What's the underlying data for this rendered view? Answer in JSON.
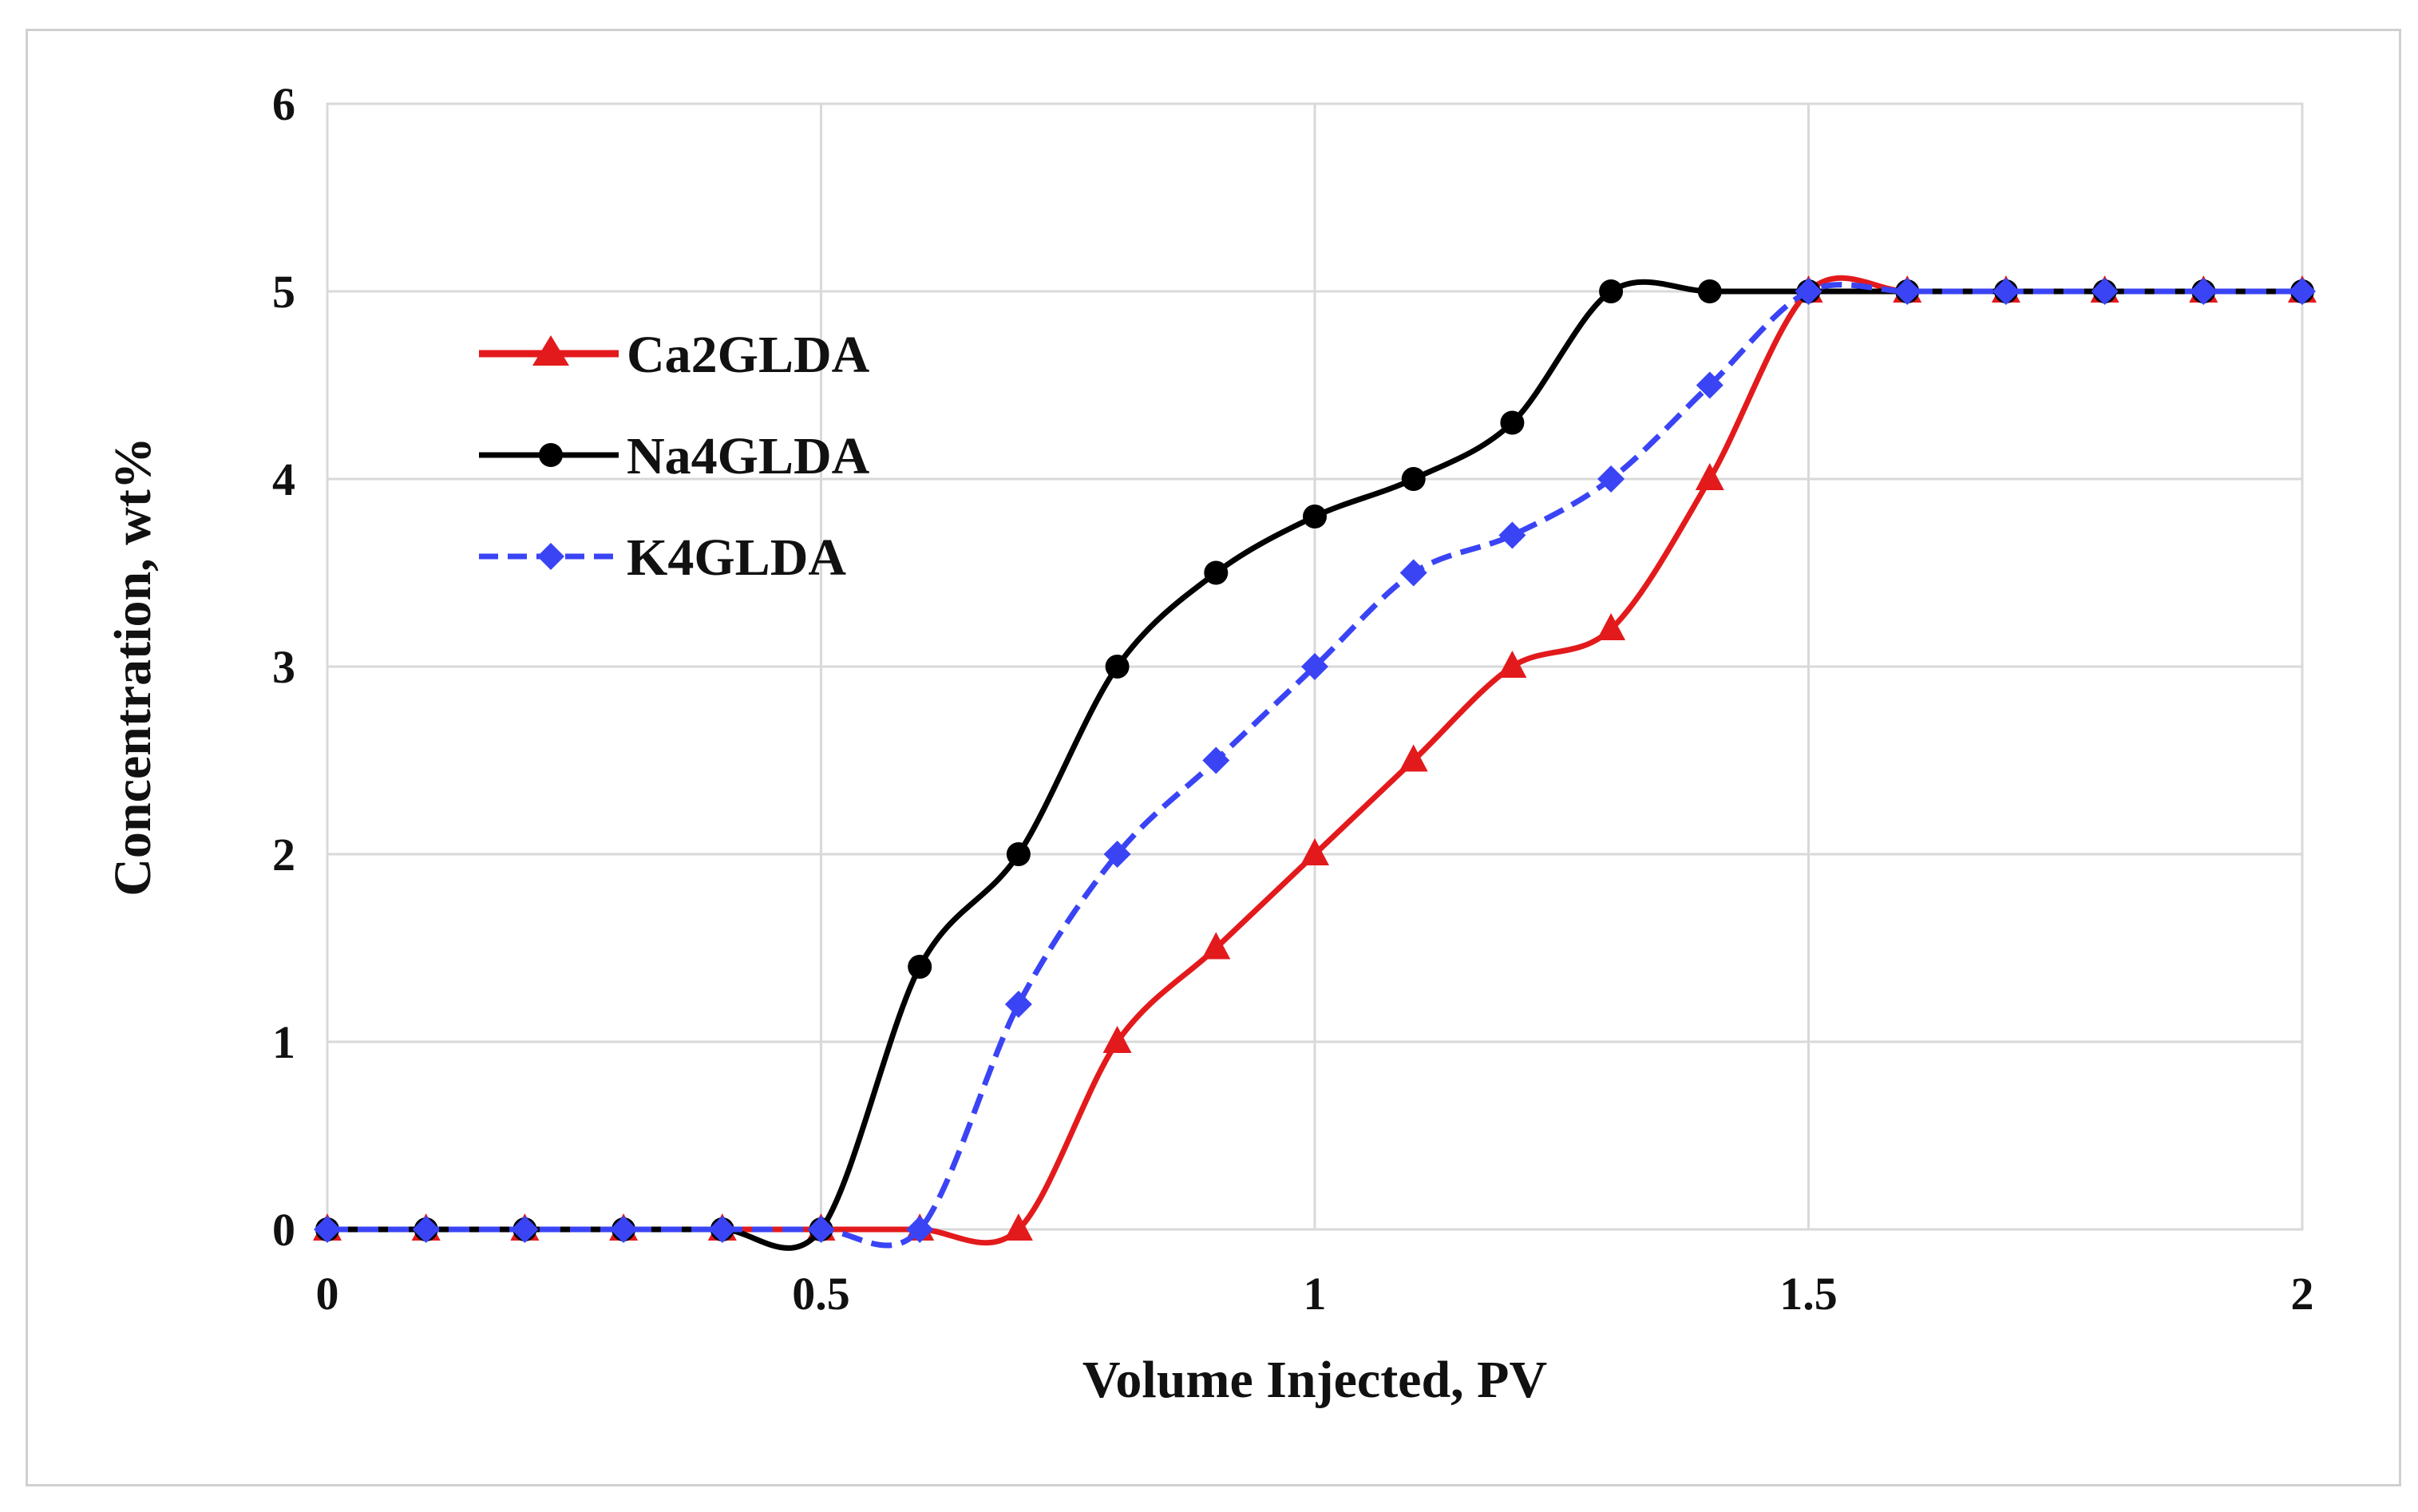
{
  "chart_data": {
    "type": "line",
    "title": "",
    "xlabel": "Volume Injected, PV",
    "ylabel": "Concentration, wt%",
    "xlim": [
      0,
      2
    ],
    "ylim": [
      0,
      6
    ],
    "x_ticks": [
      "0",
      "0.5",
      "1",
      "1.5",
      "2"
    ],
    "y_ticks": [
      "0",
      "1",
      "2",
      "3",
      "4",
      "5",
      "6"
    ],
    "grid": true,
    "legend_position": "upper-left",
    "series": [
      {
        "name": "Ca2GLDA",
        "color": "#e31a1c",
        "line_style": "solid",
        "marker": "triangle",
        "x": [
          0,
          0.1,
          0.2,
          0.3,
          0.4,
          0.5,
          0.6,
          0.7,
          0.8,
          0.9,
          1.0,
          1.1,
          1.2,
          1.3,
          1.4,
          1.5,
          1.6,
          1.7,
          1.8,
          1.9,
          2.0
        ],
        "y": [
          0,
          0,
          0,
          0,
          0,
          0,
          0,
          0,
          1.0,
          1.5,
          2.0,
          2.5,
          3.0,
          3.2,
          4.0,
          5.0,
          5.0,
          5.0,
          5.0,
          5.0,
          5.0
        ]
      },
      {
        "name": "Na4GLDA",
        "color": "#000000",
        "line_style": "solid",
        "marker": "circle",
        "x": [
          0,
          0.1,
          0.2,
          0.3,
          0.4,
          0.5,
          0.6,
          0.7,
          0.8,
          0.9,
          1.0,
          1.1,
          1.2,
          1.3,
          1.4,
          1.5,
          1.6,
          1.7,
          1.8,
          1.9,
          2.0
        ],
        "y": [
          0,
          0,
          0,
          0,
          0,
          0,
          1.4,
          2.0,
          3.0,
          3.5,
          3.8,
          4.0,
          4.3,
          5.0,
          5.0,
          5.0,
          5.0,
          5.0,
          5.0,
          5.0,
          5.0
        ]
      },
      {
        "name": "K4GLDA",
        "color": "#3a44f5",
        "line_style": "dashed",
        "marker": "diamond",
        "x": [
          0,
          0.1,
          0.2,
          0.3,
          0.4,
          0.5,
          0.6,
          0.7,
          0.8,
          0.9,
          1.0,
          1.1,
          1.2,
          1.3,
          1.4,
          1.5,
          1.6,
          1.7,
          1.8,
          1.9,
          2.0
        ],
        "y": [
          0,
          0,
          0,
          0,
          0,
          0,
          0,
          1.2,
          2.0,
          2.5,
          3.0,
          3.5,
          3.7,
          4.0,
          4.5,
          5.0,
          5.0,
          5.0,
          5.0,
          5.0,
          5.0
        ]
      }
    ]
  }
}
